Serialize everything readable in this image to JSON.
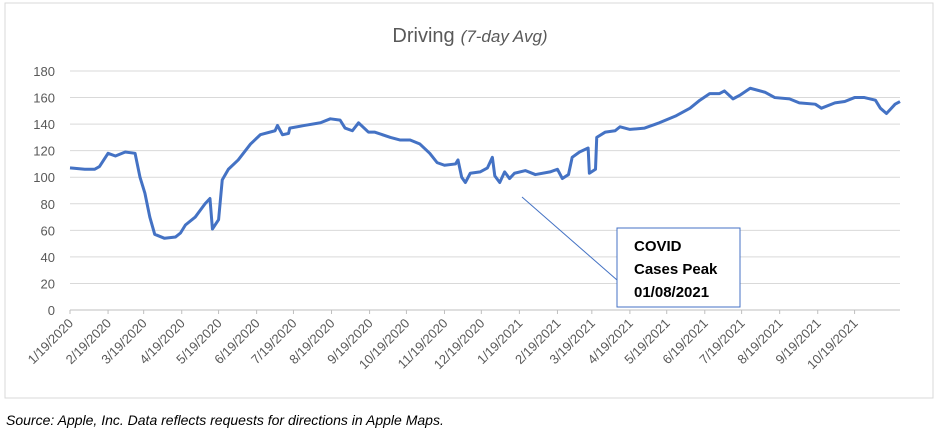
{
  "chart_data": {
    "type": "line",
    "title": "Driving",
    "subtitle": "(7-day Avg)",
    "source": "Source:  Apple, Inc.  Data reflects requests for directions in Apple Maps.",
    "annotation": [
      "COVID",
      "Cases Peak",
      "01/08/2021"
    ],
    "grid": true,
    "xlim": [
      "2020-01-19",
      "2021-11-25"
    ],
    "ylim": [
      0,
      180
    ],
    "yticks": [
      0,
      20,
      40,
      60,
      80,
      100,
      120,
      140,
      160,
      180
    ],
    "xticks": [
      {
        "value": "2020-01-19",
        "label": "1/19/2020"
      },
      {
        "value": "2020-02-19",
        "label": "2/19/2020"
      },
      {
        "value": "2020-03-19",
        "label": "3/19/2020"
      },
      {
        "value": "2020-04-19",
        "label": "4/19/2020"
      },
      {
        "value": "2020-05-19",
        "label": "5/19/2020"
      },
      {
        "value": "2020-06-19",
        "label": "6/19/2020"
      },
      {
        "value": "2020-07-19",
        "label": "7/19/2020"
      },
      {
        "value": "2020-08-19",
        "label": "8/19/2020"
      },
      {
        "value": "2020-09-19",
        "label": "9/19/2020"
      },
      {
        "value": "2020-10-19",
        "label": "10/19/2020"
      },
      {
        "value": "2020-11-19",
        "label": "11/19/2020"
      },
      {
        "value": "2020-12-19",
        "label": "12/19/2020"
      },
      {
        "value": "2021-01-19",
        "label": "1/19/2021"
      },
      {
        "value": "2021-02-19",
        "label": "2/19/2021"
      },
      {
        "value": "2021-03-19",
        "label": "3/19/2021"
      },
      {
        "value": "2021-04-19",
        "label": "4/19/2021"
      },
      {
        "value": "2021-05-19",
        "label": "5/19/2021"
      },
      {
        "value": "2021-06-19",
        "label": "6/19/2021"
      },
      {
        "value": "2021-07-19",
        "label": "7/19/2021"
      },
      {
        "value": "2021-08-19",
        "label": "8/19/2021"
      },
      {
        "value": "2021-09-19",
        "label": "9/19/2021"
      },
      {
        "value": "2021-10-19",
        "label": "10/19/2021"
      }
    ],
    "x": [
      "2020-01-19",
      "2020-01-31",
      "2020-02-08",
      "2020-02-12",
      "2020-02-19",
      "2020-02-25",
      "2020-03-04",
      "2020-03-12",
      "2020-03-16",
      "2020-03-20",
      "2020-03-24",
      "2020-03-28",
      "2020-04-05",
      "2020-04-14",
      "2020-04-18",
      "2020-04-22",
      "2020-04-30",
      "2020-05-08",
      "2020-05-12",
      "2020-05-14",
      "2020-05-19",
      "2020-05-22",
      "2020-05-27",
      "2020-06-04",
      "2020-06-14",
      "2020-06-22",
      "2020-07-04",
      "2020-07-06",
      "2020-07-10",
      "2020-07-15",
      "2020-07-16",
      "2020-07-28",
      "2020-08-10",
      "2020-08-18",
      "2020-08-26",
      "2020-08-30",
      "2020-09-05",
      "2020-09-10",
      "2020-09-18",
      "2020-09-23",
      "2020-10-06",
      "2020-10-14",
      "2020-10-22",
      "2020-10-30",
      "2020-11-07",
      "2020-11-13",
      "2020-11-19",
      "2020-11-28",
      "2020-11-30",
      "2020-12-03",
      "2020-12-06",
      "2020-12-10",
      "2020-12-18",
      "2020-12-24",
      "2020-12-28",
      "2020-12-30",
      "2021-01-03",
      "2021-01-07",
      "2021-01-11",
      "2021-01-15",
      "2021-01-24",
      "2021-02-01",
      "2021-02-13",
      "2021-02-19",
      "2021-02-23",
      "2021-02-28",
      "2021-03-03",
      "2021-03-09",
      "2021-03-16",
      "2021-03-17",
      "2021-03-22",
      "2021-03-23",
      "2021-03-30",
      "2021-04-07",
      "2021-04-11",
      "2021-04-19",
      "2021-05-01",
      "2021-05-13",
      "2021-05-26",
      "2021-06-07",
      "2021-06-15",
      "2021-06-23",
      "2021-07-01",
      "2021-07-05",
      "2021-07-12",
      "2021-07-18",
      "2021-07-26",
      "2021-08-07",
      "2021-08-15",
      "2021-08-27",
      "2021-09-04",
      "2021-09-17",
      "2021-09-22",
      "2021-10-03",
      "2021-10-11",
      "2021-10-19",
      "2021-10-27",
      "2021-11-05",
      "2021-11-09",
      "2021-11-14",
      "2021-11-21",
      "2021-11-25"
    ],
    "series": [
      {
        "name": "Driving",
        "color": "#4472c4",
        "values": [
          107,
          106,
          106,
          108,
          118,
          116,
          119,
          118,
          100,
          88,
          70,
          57,
          54,
          55,
          58,
          64,
          70,
          80,
          84,
          61,
          68,
          98,
          106,
          113,
          125,
          132,
          135,
          139,
          132,
          133,
          137,
          139,
          141,
          144,
          143,
          137,
          135,
          141,
          134,
          134,
          130,
          128,
          128,
          125,
          118,
          111,
          109,
          110,
          113,
          100,
          96,
          103,
          104,
          107,
          115,
          101,
          96,
          104,
          99,
          103,
          105,
          102,
          104,
          106,
          99,
          102,
          115,
          119,
          122,
          103,
          106,
          130,
          134,
          135,
          138,
          136,
          137,
          141,
          146,
          152,
          158,
          163,
          163,
          165,
          159,
          162,
          167,
          164,
          160,
          159,
          156,
          155,
          152,
          156,
          157,
          160,
          160,
          158,
          152,
          148,
          155,
          157
        ]
      }
    ]
  }
}
